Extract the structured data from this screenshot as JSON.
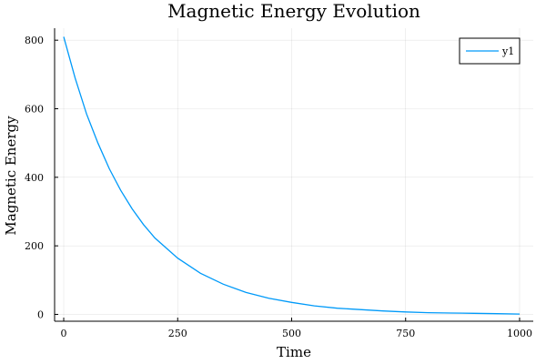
{
  "chart_data": {
    "type": "line",
    "title": "Magnetic Energy Evolution",
    "xlabel": "Time",
    "ylabel": "Magnetic Energy",
    "xlim": [
      -20,
      1030
    ],
    "ylim": [
      -20,
      835
    ],
    "xticks": [
      0,
      250,
      500,
      750,
      1000
    ],
    "xtick_labels": [
      "0",
      "250",
      "500",
      "750",
      "1000"
    ],
    "yticks": [
      0,
      200,
      400,
      600,
      800
    ],
    "ytick_labels": [
      "0",
      "200",
      "400",
      "600",
      "800"
    ],
    "grid": true,
    "legend_position": "top-right",
    "series": [
      {
        "name": "y1",
        "color": "#009af9",
        "x": [
          0,
          25,
          50,
          75,
          100,
          125,
          150,
          175,
          200,
          250,
          300,
          350,
          400,
          450,
          500,
          550,
          600,
          650,
          700,
          750,
          800,
          850,
          900,
          950,
          1000
        ],
        "y": [
          810,
          690,
          585,
          500,
          425,
          362,
          308,
          262,
          223,
          164,
          120,
          88,
          64,
          47,
          35,
          25,
          18,
          14,
          10,
          7,
          5,
          4,
          3,
          2,
          1
        ]
      }
    ]
  }
}
